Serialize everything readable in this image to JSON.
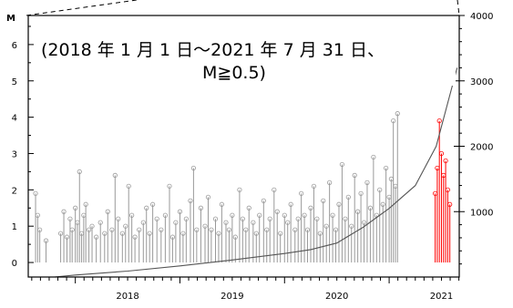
{
  "chart_data": {
    "type": "scatter",
    "title_lines": [
      "(2018 年 1 月 1 日～2021 年 7 月 31 日、",
      "M≧0.5)"
    ],
    "ylabel": "M",
    "ylim": [
      -0.4,
      6.8
    ],
    "y2lim": [
      0,
      4000
    ],
    "xlim": [
      2017.55,
      2021.67
    ],
    "yticks": [
      "0",
      "1",
      "2",
      "3",
      "4",
      "5",
      "6"
    ],
    "y2ticks": [
      "1000",
      "2000",
      "3000",
      "4000"
    ],
    "xticks": [
      "2018",
      "2019",
      "2020",
      "2021"
    ],
    "series": [
      {
        "kind": "magnitude_stems",
        "color": "#999999",
        "points": [
          {
            "x": 2017.62,
            "y": 1.9
          },
          {
            "x": 2017.64,
            "y": 1.3
          },
          {
            "x": 2017.66,
            "y": 0.9
          },
          {
            "x": 2017.72,
            "y": 0.6
          },
          {
            "x": 2017.86,
            "y": 0.8
          },
          {
            "x": 2017.89,
            "y": 1.4
          },
          {
            "x": 2017.92,
            "y": 0.7
          },
          {
            "x": 2017.95,
            "y": 1.2
          },
          {
            "x": 2017.97,
            "y": 0.9
          },
          {
            "x": 2018.0,
            "y": 1.5
          },
          {
            "x": 2018.02,
            "y": 1.1
          },
          {
            "x": 2018.04,
            "y": 2.5
          },
          {
            "x": 2018.06,
            "y": 0.8
          },
          {
            "x": 2018.08,
            "y": 1.3
          },
          {
            "x": 2018.1,
            "y": 1.6
          },
          {
            "x": 2018.13,
            "y": 0.9
          },
          {
            "x": 2018.16,
            "y": 1.0
          },
          {
            "x": 2018.2,
            "y": 0.7
          },
          {
            "x": 2018.24,
            "y": 1.1
          },
          {
            "x": 2018.28,
            "y": 0.8
          },
          {
            "x": 2018.31,
            "y": 1.4
          },
          {
            "x": 2018.35,
            "y": 0.9
          },
          {
            "x": 2018.38,
            "y": 2.4
          },
          {
            "x": 2018.41,
            "y": 1.2
          },
          {
            "x": 2018.45,
            "y": 0.8
          },
          {
            "x": 2018.48,
            "y": 1.0
          },
          {
            "x": 2018.51,
            "y": 2.1
          },
          {
            "x": 2018.54,
            "y": 1.3
          },
          {
            "x": 2018.57,
            "y": 0.7
          },
          {
            "x": 2018.61,
            "y": 0.9
          },
          {
            "x": 2018.65,
            "y": 1.1
          },
          {
            "x": 2018.68,
            "y": 1.5
          },
          {
            "x": 2018.71,
            "y": 0.8
          },
          {
            "x": 2018.74,
            "y": 1.6
          },
          {
            "x": 2018.78,
            "y": 1.2
          },
          {
            "x": 2018.82,
            "y": 0.9
          },
          {
            "x": 2018.86,
            "y": 1.3
          },
          {
            "x": 2018.9,
            "y": 2.1
          },
          {
            "x": 2018.93,
            "y": 0.7
          },
          {
            "x": 2018.96,
            "y": 1.1
          },
          {
            "x": 2019.0,
            "y": 1.4
          },
          {
            "x": 2019.03,
            "y": 0.8
          },
          {
            "x": 2019.06,
            "y": 1.2
          },
          {
            "x": 2019.1,
            "y": 1.7
          },
          {
            "x": 2019.13,
            "y": 2.6
          },
          {
            "x": 2019.16,
            "y": 0.9
          },
          {
            "x": 2019.2,
            "y": 1.5
          },
          {
            "x": 2019.24,
            "y": 1.0
          },
          {
            "x": 2019.27,
            "y": 1.8
          },
          {
            "x": 2019.3,
            "y": 0.9
          },
          {
            "x": 2019.34,
            "y": 1.2
          },
          {
            "x": 2019.37,
            "y": 0.8
          },
          {
            "x": 2019.4,
            "y": 1.6
          },
          {
            "x": 2019.44,
            "y": 1.1
          },
          {
            "x": 2019.47,
            "y": 0.9
          },
          {
            "x": 2019.5,
            "y": 1.3
          },
          {
            "x": 2019.53,
            "y": 0.7
          },
          {
            "x": 2019.57,
            "y": 2.0
          },
          {
            "x": 2019.6,
            "y": 1.2
          },
          {
            "x": 2019.63,
            "y": 0.9
          },
          {
            "x": 2019.66,
            "y": 1.5
          },
          {
            "x": 2019.7,
            "y": 1.1
          },
          {
            "x": 2019.73,
            "y": 0.8
          },
          {
            "x": 2019.76,
            "y": 1.3
          },
          {
            "x": 2019.8,
            "y": 1.7
          },
          {
            "x": 2019.83,
            "y": 0.9
          },
          {
            "x": 2019.86,
            "y": 1.2
          },
          {
            "x": 2019.9,
            "y": 2.0
          },
          {
            "x": 2019.93,
            "y": 1.4
          },
          {
            "x": 2019.96,
            "y": 0.8
          },
          {
            "x": 2020.0,
            "y": 1.3
          },
          {
            "x": 2020.03,
            "y": 1.1
          },
          {
            "x": 2020.06,
            "y": 1.6
          },
          {
            "x": 2020.1,
            "y": 0.9
          },
          {
            "x": 2020.13,
            "y": 1.2
          },
          {
            "x": 2020.16,
            "y": 1.9
          },
          {
            "x": 2020.19,
            "y": 1.3
          },
          {
            "x": 2020.22,
            "y": 0.9
          },
          {
            "x": 2020.25,
            "y": 1.5
          },
          {
            "x": 2020.28,
            "y": 2.1
          },
          {
            "x": 2020.31,
            "y": 1.2
          },
          {
            "x": 2020.34,
            "y": 0.8
          },
          {
            "x": 2020.37,
            "y": 1.7
          },
          {
            "x": 2020.4,
            "y": 1.0
          },
          {
            "x": 2020.43,
            "y": 2.2
          },
          {
            "x": 2020.46,
            "y": 1.3
          },
          {
            "x": 2020.49,
            "y": 0.9
          },
          {
            "x": 2020.52,
            "y": 1.6
          },
          {
            "x": 2020.55,
            "y": 2.7
          },
          {
            "x": 2020.58,
            "y": 1.2
          },
          {
            "x": 2020.61,
            "y": 1.8
          },
          {
            "x": 2020.64,
            "y": 1.0
          },
          {
            "x": 2020.67,
            "y": 2.4
          },
          {
            "x": 2020.7,
            "y": 1.4
          },
          {
            "x": 2020.73,
            "y": 1.9
          },
          {
            "x": 2020.76,
            "y": 1.1
          },
          {
            "x": 2020.79,
            "y": 2.2
          },
          {
            "x": 2020.82,
            "y": 1.5
          },
          {
            "x": 2020.85,
            "y": 2.9
          },
          {
            "x": 2020.88,
            "y": 1.3
          },
          {
            "x": 2020.91,
            "y": 2.0
          },
          {
            "x": 2020.94,
            "y": 1.6
          },
          {
            "x": 2020.97,
            "y": 2.6
          },
          {
            "x": 2021.0,
            "y": 1.8
          },
          {
            "x": 2021.02,
            "y": 2.3
          },
          {
            "x": 2021.04,
            "y": 3.9
          },
          {
            "x": 2021.06,
            "y": 2.1
          },
          {
            "x": 2021.08,
            "y": 4.1
          }
        ]
      },
      {
        "kind": "magnitude_stems",
        "color": "#ff0000",
        "points": [
          {
            "x": 2021.44,
            "y": 1.9
          },
          {
            "x": 2021.46,
            "y": 2.6
          },
          {
            "x": 2021.48,
            "y": 3.9
          },
          {
            "x": 2021.5,
            "y": 3.0
          },
          {
            "x": 2021.52,
            "y": 2.4
          },
          {
            "x": 2021.54,
            "y": 2.8
          },
          {
            "x": 2021.56,
            "y": 2.0
          },
          {
            "x": 2021.58,
            "y": 1.6
          }
        ]
      },
      {
        "kind": "cumulative_count",
        "axis": "right",
        "color": "#555555",
        "points": [
          {
            "x": 2017.8,
            "y": 0
          },
          {
            "x": 2018.0,
            "y": 30
          },
          {
            "x": 2018.5,
            "y": 90
          },
          {
            "x": 2019.0,
            "y": 170
          },
          {
            "x": 2019.5,
            "y": 260
          },
          {
            "x": 2020.0,
            "y": 360
          },
          {
            "x": 2020.25,
            "y": 420
          },
          {
            "x": 2020.5,
            "y": 520
          },
          {
            "x": 2020.75,
            "y": 760
          },
          {
            "x": 2021.0,
            "y": 1050
          },
          {
            "x": 2021.25,
            "y": 1400
          },
          {
            "x": 2021.45,
            "y": 2000
          },
          {
            "x": 2021.55,
            "y": 2600
          },
          {
            "x": 2021.65,
            "y": 3200
          }
        ]
      }
    ]
  }
}
